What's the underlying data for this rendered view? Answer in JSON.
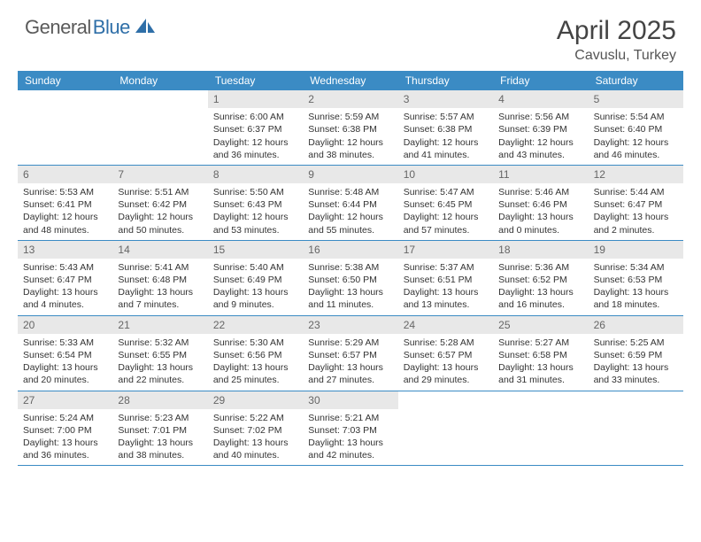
{
  "brand": {
    "part1": "General",
    "part2": "Blue"
  },
  "title": "April 2025",
  "location": "Cavuslu, Turkey",
  "colors": {
    "header_bg": "#3b8bc4",
    "daynum_bg": "#e8e8e8",
    "row_border": "#3b8bc4",
    "brand_gray": "#5a5a5a",
    "brand_blue": "#2f6fa8"
  },
  "dow": [
    "Sunday",
    "Monday",
    "Tuesday",
    "Wednesday",
    "Thursday",
    "Friday",
    "Saturday"
  ],
  "weeks": [
    [
      {
        "n": "",
        "sr": "",
        "ss": "",
        "dl": ""
      },
      {
        "n": "",
        "sr": "",
        "ss": "",
        "dl": ""
      },
      {
        "n": "1",
        "sr": "Sunrise: 6:00 AM",
        "ss": "Sunset: 6:37 PM",
        "dl": "Daylight: 12 hours and 36 minutes."
      },
      {
        "n": "2",
        "sr": "Sunrise: 5:59 AM",
        "ss": "Sunset: 6:38 PM",
        "dl": "Daylight: 12 hours and 38 minutes."
      },
      {
        "n": "3",
        "sr": "Sunrise: 5:57 AM",
        "ss": "Sunset: 6:38 PM",
        "dl": "Daylight: 12 hours and 41 minutes."
      },
      {
        "n": "4",
        "sr": "Sunrise: 5:56 AM",
        "ss": "Sunset: 6:39 PM",
        "dl": "Daylight: 12 hours and 43 minutes."
      },
      {
        "n": "5",
        "sr": "Sunrise: 5:54 AM",
        "ss": "Sunset: 6:40 PM",
        "dl": "Daylight: 12 hours and 46 minutes."
      }
    ],
    [
      {
        "n": "6",
        "sr": "Sunrise: 5:53 AM",
        "ss": "Sunset: 6:41 PM",
        "dl": "Daylight: 12 hours and 48 minutes."
      },
      {
        "n": "7",
        "sr": "Sunrise: 5:51 AM",
        "ss": "Sunset: 6:42 PM",
        "dl": "Daylight: 12 hours and 50 minutes."
      },
      {
        "n": "8",
        "sr": "Sunrise: 5:50 AM",
        "ss": "Sunset: 6:43 PM",
        "dl": "Daylight: 12 hours and 53 minutes."
      },
      {
        "n": "9",
        "sr": "Sunrise: 5:48 AM",
        "ss": "Sunset: 6:44 PM",
        "dl": "Daylight: 12 hours and 55 minutes."
      },
      {
        "n": "10",
        "sr": "Sunrise: 5:47 AM",
        "ss": "Sunset: 6:45 PM",
        "dl": "Daylight: 12 hours and 57 minutes."
      },
      {
        "n": "11",
        "sr": "Sunrise: 5:46 AM",
        "ss": "Sunset: 6:46 PM",
        "dl": "Daylight: 13 hours and 0 minutes."
      },
      {
        "n": "12",
        "sr": "Sunrise: 5:44 AM",
        "ss": "Sunset: 6:47 PM",
        "dl": "Daylight: 13 hours and 2 minutes."
      }
    ],
    [
      {
        "n": "13",
        "sr": "Sunrise: 5:43 AM",
        "ss": "Sunset: 6:47 PM",
        "dl": "Daylight: 13 hours and 4 minutes."
      },
      {
        "n": "14",
        "sr": "Sunrise: 5:41 AM",
        "ss": "Sunset: 6:48 PM",
        "dl": "Daylight: 13 hours and 7 minutes."
      },
      {
        "n": "15",
        "sr": "Sunrise: 5:40 AM",
        "ss": "Sunset: 6:49 PM",
        "dl": "Daylight: 13 hours and 9 minutes."
      },
      {
        "n": "16",
        "sr": "Sunrise: 5:38 AM",
        "ss": "Sunset: 6:50 PM",
        "dl": "Daylight: 13 hours and 11 minutes."
      },
      {
        "n": "17",
        "sr": "Sunrise: 5:37 AM",
        "ss": "Sunset: 6:51 PM",
        "dl": "Daylight: 13 hours and 13 minutes."
      },
      {
        "n": "18",
        "sr": "Sunrise: 5:36 AM",
        "ss": "Sunset: 6:52 PM",
        "dl": "Daylight: 13 hours and 16 minutes."
      },
      {
        "n": "19",
        "sr": "Sunrise: 5:34 AM",
        "ss": "Sunset: 6:53 PM",
        "dl": "Daylight: 13 hours and 18 minutes."
      }
    ],
    [
      {
        "n": "20",
        "sr": "Sunrise: 5:33 AM",
        "ss": "Sunset: 6:54 PM",
        "dl": "Daylight: 13 hours and 20 minutes."
      },
      {
        "n": "21",
        "sr": "Sunrise: 5:32 AM",
        "ss": "Sunset: 6:55 PM",
        "dl": "Daylight: 13 hours and 22 minutes."
      },
      {
        "n": "22",
        "sr": "Sunrise: 5:30 AM",
        "ss": "Sunset: 6:56 PM",
        "dl": "Daylight: 13 hours and 25 minutes."
      },
      {
        "n": "23",
        "sr": "Sunrise: 5:29 AM",
        "ss": "Sunset: 6:57 PM",
        "dl": "Daylight: 13 hours and 27 minutes."
      },
      {
        "n": "24",
        "sr": "Sunrise: 5:28 AM",
        "ss": "Sunset: 6:57 PM",
        "dl": "Daylight: 13 hours and 29 minutes."
      },
      {
        "n": "25",
        "sr": "Sunrise: 5:27 AM",
        "ss": "Sunset: 6:58 PM",
        "dl": "Daylight: 13 hours and 31 minutes."
      },
      {
        "n": "26",
        "sr": "Sunrise: 5:25 AM",
        "ss": "Sunset: 6:59 PM",
        "dl": "Daylight: 13 hours and 33 minutes."
      }
    ],
    [
      {
        "n": "27",
        "sr": "Sunrise: 5:24 AM",
        "ss": "Sunset: 7:00 PM",
        "dl": "Daylight: 13 hours and 36 minutes."
      },
      {
        "n": "28",
        "sr": "Sunrise: 5:23 AM",
        "ss": "Sunset: 7:01 PM",
        "dl": "Daylight: 13 hours and 38 minutes."
      },
      {
        "n": "29",
        "sr": "Sunrise: 5:22 AM",
        "ss": "Sunset: 7:02 PM",
        "dl": "Daylight: 13 hours and 40 minutes."
      },
      {
        "n": "30",
        "sr": "Sunrise: 5:21 AM",
        "ss": "Sunset: 7:03 PM",
        "dl": "Daylight: 13 hours and 42 minutes."
      },
      {
        "n": "",
        "sr": "",
        "ss": "",
        "dl": ""
      },
      {
        "n": "",
        "sr": "",
        "ss": "",
        "dl": ""
      },
      {
        "n": "",
        "sr": "",
        "ss": "",
        "dl": ""
      }
    ]
  ]
}
